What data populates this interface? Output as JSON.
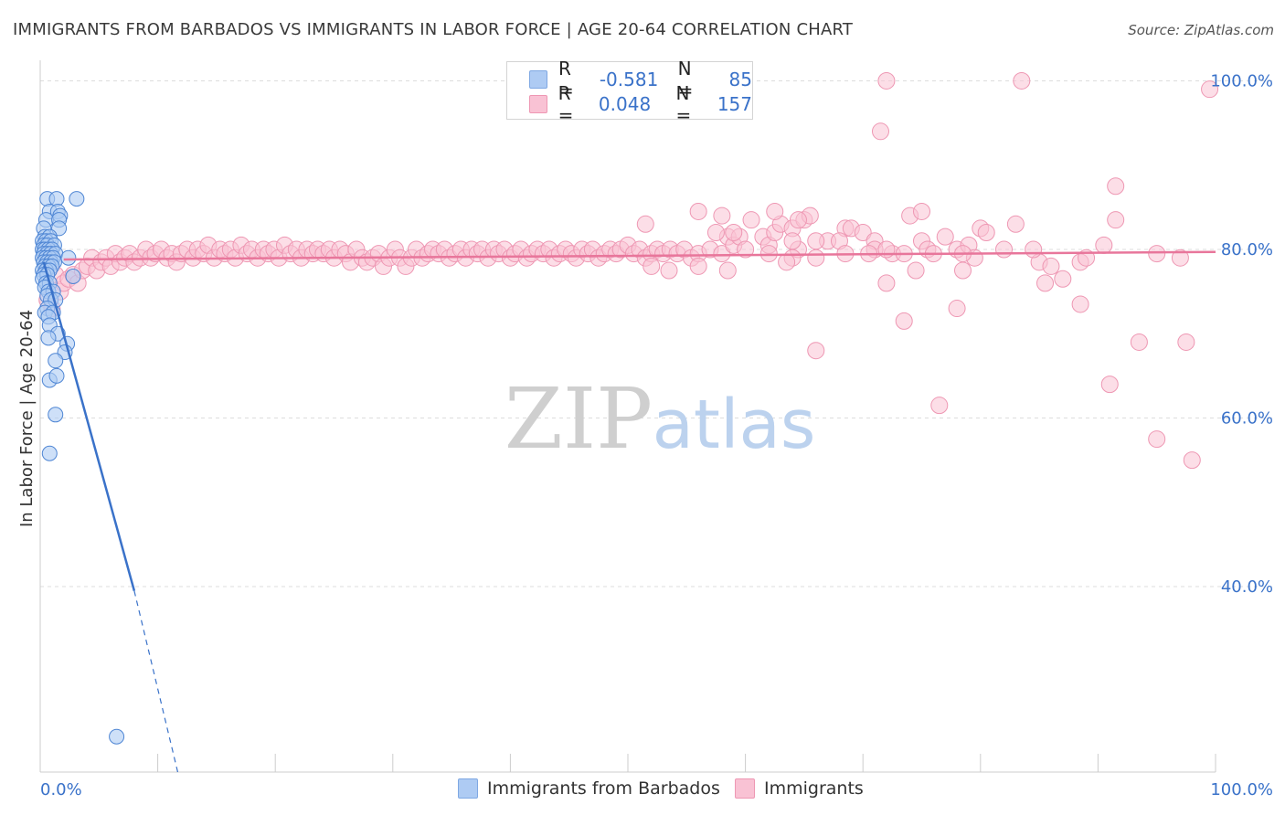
{
  "title": "IMMIGRANTS FROM BARBADOS VS IMMIGRANTS IN LABOR FORCE | AGE 20-64 CORRELATION CHART",
  "source": "Source: ZipAtlas.com",
  "legend": {
    "rows": [
      {
        "r_label": "R =",
        "r_value": "-0.581",
        "n_label": "N =",
        "n_value": "85"
      },
      {
        "r_label": "R =",
        "r_value": "0.048",
        "n_label": "N =",
        "n_value": "157"
      }
    ]
  },
  "bottom_legend": {
    "series1": "Immigrants from Barbados",
    "series2": "Immigrants"
  },
  "watermark": {
    "zip": "ZIP",
    "atlas": "atlas"
  },
  "colors": {
    "blue": "#3a72c9",
    "blue_fill": "#aecbf3",
    "pink": "#e8769b",
    "pink_fill": "#f9c2d4",
    "grid": "#dddddd"
  },
  "chart_data": {
    "type": "scatter",
    "title": "IMMIGRANTS FROM BARBADOS VS IMMIGRANTS IN LABOR FORCE | AGE 20-64 CORRELATION CHART",
    "xlabel": "",
    "ylabel": "In Labor Force | Age 20-64",
    "xlim": [
      0,
      100
    ],
    "ylim": [
      18,
      102
    ],
    "x_tick_labels": {
      "left": "0.0%",
      "right": "100.0%"
    },
    "y_ticks": [
      {
        "value": 40,
        "label": "40.0%"
      },
      {
        "value": 60,
        "label": "60.0%"
      },
      {
        "value": 80,
        "label": "80.0%"
      },
      {
        "value": 100,
        "label": "100.0%"
      }
    ],
    "series": [
      {
        "name": "Immigrants from Barbados",
        "r": -0.581,
        "n": 85,
        "trend": {
          "x0": 0.3,
          "y0": 78.5,
          "x1": 8.0,
          "y1": 39.5,
          "dash_x1": 11.7,
          "dash_y1": 18.0
        },
        "points": [
          [
            0.6,
            86
          ],
          [
            1.4,
            86
          ],
          [
            3.1,
            86
          ],
          [
            0.8,
            84.5
          ],
          [
            1.5,
            84.5
          ],
          [
            1.7,
            84
          ],
          [
            0.5,
            83.5
          ],
          [
            1.6,
            83.5
          ],
          [
            0.3,
            82.5
          ],
          [
            1.6,
            82.5
          ],
          [
            0.4,
            81.5
          ],
          [
            0.8,
            81.5
          ],
          [
            0.2,
            81
          ],
          [
            0.5,
            81
          ],
          [
            0.9,
            81
          ],
          [
            0.3,
            80.5
          ],
          [
            0.6,
            80.5
          ],
          [
            1.2,
            80.5
          ],
          [
            0.2,
            80
          ],
          [
            0.4,
            80
          ],
          [
            0.7,
            80
          ],
          [
            1.0,
            80
          ],
          [
            0.3,
            79.5
          ],
          [
            0.6,
            79.5
          ],
          [
            0.9,
            79.5
          ],
          [
            1.3,
            79.5
          ],
          [
            0.2,
            79
          ],
          [
            0.5,
            79
          ],
          [
            0.8,
            79
          ],
          [
            1.1,
            79
          ],
          [
            2.4,
            79
          ],
          [
            0.3,
            78.5
          ],
          [
            0.6,
            78.5
          ],
          [
            0.9,
            78.5
          ],
          [
            1.2,
            78.5
          ],
          [
            0.4,
            78
          ],
          [
            0.7,
            78
          ],
          [
            1.0,
            78
          ],
          [
            0.2,
            77.5
          ],
          [
            0.5,
            77.5
          ],
          [
            0.8,
            77.5
          ],
          [
            0.3,
            77
          ],
          [
            0.6,
            77
          ],
          [
            0.2,
            76.5
          ],
          [
            2.8,
            76.8
          ],
          [
            0.5,
            76
          ],
          [
            0.8,
            76
          ],
          [
            0.4,
            75.5
          ],
          [
            0.7,
            75
          ],
          [
            1.1,
            75
          ],
          [
            0.6,
            74.5
          ],
          [
            0.9,
            74
          ],
          [
            1.3,
            74
          ],
          [
            0.6,
            73
          ],
          [
            0.4,
            72.5
          ],
          [
            1.1,
            72.5
          ],
          [
            0.7,
            72
          ],
          [
            0.8,
            71
          ],
          [
            1.5,
            70
          ],
          [
            0.7,
            69.5
          ],
          [
            2.3,
            68.8
          ],
          [
            2.1,
            67.8
          ],
          [
            1.3,
            66.8
          ],
          [
            0.8,
            64.5
          ],
          [
            1.4,
            65
          ],
          [
            1.3,
            60.4
          ],
          [
            0.8,
            55.8
          ],
          [
            6.5,
            22.2
          ]
        ]
      },
      {
        "name": "Immigrants",
        "r": 0.048,
        "n": 157,
        "trend": {
          "x0": 2.0,
          "y0": 78.8,
          "x1": 100.0,
          "y1": 79.7
        },
        "points": [
          [
            0.6,
            74
          ],
          [
            1.0,
            73
          ],
          [
            1.3,
            77
          ],
          [
            1.7,
            75
          ],
          [
            2.0,
            76
          ],
          [
            2.4,
            76.5
          ],
          [
            2.8,
            77
          ],
          [
            3.2,
            76
          ],
          [
            3.6,
            77.5
          ],
          [
            4.0,
            78
          ],
          [
            4.4,
            79
          ],
          [
            4.8,
            77.5
          ],
          [
            5.2,
            78.5
          ],
          [
            5.6,
            79
          ],
          [
            6.0,
            78
          ],
          [
            6.4,
            79.5
          ],
          [
            6.8,
            78.5
          ],
          [
            7.2,
            79
          ],
          [
            7.6,
            79.5
          ],
          [
            8.0,
            78.5
          ],
          [
            8.5,
            79
          ],
          [
            9.0,
            80
          ],
          [
            9.4,
            79
          ],
          [
            9.8,
            79.5
          ],
          [
            10.3,
            80
          ],
          [
            10.8,
            79
          ],
          [
            11.2,
            79.5
          ],
          [
            11.6,
            78.5
          ],
          [
            12.0,
            79.5
          ],
          [
            12.5,
            80
          ],
          [
            13.0,
            79
          ],
          [
            13.4,
            80
          ],
          [
            13.9,
            79.5
          ],
          [
            14.3,
            80.5
          ],
          [
            14.8,
            79
          ],
          [
            15.3,
            80
          ],
          [
            15.7,
            79.5
          ],
          [
            16.2,
            80
          ],
          [
            16.6,
            79
          ],
          [
            17.1,
            80.5
          ],
          [
            17.6,
            79.5
          ],
          [
            18.0,
            80
          ],
          [
            18.5,
            79
          ],
          [
            19.0,
            80
          ],
          [
            19.4,
            79.5
          ],
          [
            19.9,
            80
          ],
          [
            20.3,
            79
          ],
          [
            20.8,
            80.5
          ],
          [
            21.3,
            79.5
          ],
          [
            21.8,
            80
          ],
          [
            22.2,
            79
          ],
          [
            22.7,
            80
          ],
          [
            23.2,
            79.5
          ],
          [
            23.6,
            80
          ],
          [
            24.1,
            79.5
          ],
          [
            24.6,
            80
          ],
          [
            25.0,
            79
          ],
          [
            25.5,
            80
          ],
          [
            26.0,
            79.5
          ],
          [
            26.4,
            78.5
          ],
          [
            26.9,
            80
          ],
          [
            27.4,
            79
          ],
          [
            27.8,
            78.5
          ],
          [
            28.3,
            79
          ],
          [
            28.8,
            79.5
          ],
          [
            29.2,
            78
          ],
          [
            29.7,
            79
          ],
          [
            30.2,
            80
          ],
          [
            30.6,
            79
          ],
          [
            31.1,
            78
          ],
          [
            31.6,
            79
          ],
          [
            32.0,
            80
          ],
          [
            32.5,
            79
          ],
          [
            33.0,
            79.5
          ],
          [
            33.4,
            80
          ],
          [
            33.9,
            79.5
          ],
          [
            34.4,
            80
          ],
          [
            34.8,
            79
          ],
          [
            35.3,
            79.5
          ],
          [
            35.8,
            80
          ],
          [
            36.2,
            79
          ],
          [
            36.7,
            80
          ],
          [
            37.2,
            79.5
          ],
          [
            37.6,
            80
          ],
          [
            38.1,
            79
          ],
          [
            38.6,
            80
          ],
          [
            39.0,
            79.5
          ],
          [
            39.5,
            80
          ],
          [
            40.0,
            79
          ],
          [
            40.4,
            79.5
          ],
          [
            40.9,
            80
          ],
          [
            41.4,
            79
          ],
          [
            41.8,
            79.5
          ],
          [
            42.3,
            80
          ],
          [
            42.8,
            79.5
          ],
          [
            43.3,
            80
          ],
          [
            43.7,
            79
          ],
          [
            44.2,
            79.5
          ],
          [
            44.7,
            80
          ],
          [
            45.2,
            79.5
          ],
          [
            45.6,
            79
          ],
          [
            46.1,
            80
          ],
          [
            46.6,
            79.5
          ],
          [
            47.0,
            80
          ],
          [
            47.5,
            79
          ],
          [
            48.0,
            79.5
          ],
          [
            48.5,
            80
          ],
          [
            49.0,
            79.5
          ],
          [
            49.4,
            80
          ],
          [
            50.0,
            80.5
          ],
          [
            50.5,
            79.5
          ],
          [
            51.0,
            80
          ],
          [
            51.5,
            79
          ],
          [
            52.0,
            79.5
          ],
          [
            52.5,
            80
          ],
          [
            53.0,
            79.5
          ],
          [
            53.6,
            80
          ],
          [
            54.2,
            79.5
          ],
          [
            54.8,
            80
          ],
          [
            55.4,
            79
          ],
          [
            56.0,
            79.5
          ],
          [
            57.0,
            80
          ],
          [
            58.0,
            79.5
          ],
          [
            58.5,
            81.5
          ],
          [
            59.0,
            80.5
          ],
          [
            59.5,
            81.5
          ],
          [
            60.0,
            80
          ],
          [
            61.5,
            81.5
          ],
          [
            62.0,
            80.5
          ],
          [
            62.5,
            82
          ],
          [
            63.0,
            83
          ],
          [
            64.0,
            82.5
          ],
          [
            64.5,
            80
          ],
          [
            65.0,
            83.5
          ],
          [
            65.5,
            84
          ],
          [
            67.0,
            81
          ],
          [
            68.5,
            82.5
          ],
          [
            69.0,
            82.5
          ],
          [
            70.0,
            82
          ],
          [
            71.0,
            81
          ],
          [
            72.0,
            76
          ],
          [
            75.0,
            81
          ],
          [
            75.5,
            80
          ],
          [
            77.0,
            81.5
          ],
          [
            78.0,
            80
          ],
          [
            79.0,
            80.5
          ],
          [
            80.0,
            82.5
          ],
          [
            80.5,
            82
          ],
          [
            82.0,
            80
          ],
          [
            83.0,
            83
          ],
          [
            85.0,
            78.5
          ],
          [
            86.0,
            78
          ],
          [
            87.0,
            76.5
          ],
          [
            88.5,
            78.5
          ],
          [
            89.0,
            79
          ],
          [
            90.5,
            80.5
          ],
          [
            95.0,
            79.5
          ],
          [
            51.5,
            83
          ],
          [
            57.5,
            82
          ],
          [
            58.0,
            84
          ],
          [
            56.0,
            84.5
          ],
          [
            59.0,
            82
          ],
          [
            74.0,
            84
          ],
          [
            75.0,
            84.5
          ],
          [
            72.5,
            79.5
          ],
          [
            74.5,
            77.5
          ],
          [
            84.5,
            80
          ],
          [
            79.5,
            79
          ],
          [
            76.0,
            79.5
          ],
          [
            85.5,
            76
          ],
          [
            64.0,
            81
          ],
          [
            71.0,
            80
          ],
          [
            60.5,
            83.5
          ],
          [
            62.5,
            84.5
          ],
          [
            64.5,
            83.5
          ],
          [
            66.0,
            81
          ],
          [
            68.0,
            81
          ],
          [
            64.0,
            79
          ],
          [
            66.0,
            79
          ],
          [
            68.5,
            79.5
          ],
          [
            70.5,
            79.5
          ],
          [
            72.0,
            80
          ],
          [
            73.5,
            79.5
          ],
          [
            52.0,
            78
          ],
          [
            53.5,
            77.5
          ],
          [
            56.0,
            78
          ],
          [
            58.5,
            77.5
          ],
          [
            62.0,
            79.5
          ],
          [
            63.5,
            78.5
          ],
          [
            78.5,
            79.5
          ],
          [
            78.5,
            77.5
          ],
          [
            91.5,
            87.5
          ],
          [
            71.5,
            94
          ],
          [
            72.0,
            100
          ],
          [
            83.5,
            100
          ],
          [
            91.5,
            83.5
          ],
          [
            66.0,
            68
          ],
          [
            73.5,
            71.5
          ],
          [
            78.0,
            73
          ],
          [
            76.5,
            61.5
          ],
          [
            99.5,
            99
          ],
          [
            97.5,
            69
          ],
          [
            93.5,
            69
          ],
          [
            91.0,
            64
          ],
          [
            95.0,
            57.5
          ],
          [
            98.0,
            55
          ],
          [
            88.5,
            73.5
          ],
          [
            97.0,
            79
          ]
        ]
      }
    ]
  }
}
